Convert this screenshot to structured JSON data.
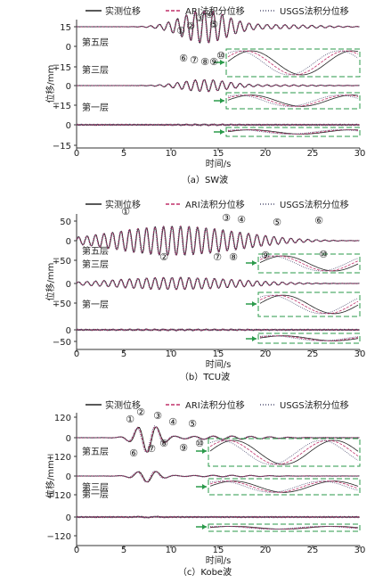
{
  "legend": [
    "实测位移",
    "ARI法积分位移",
    "USGS法积分位移"
  ],
  "series_colors": [
    "#222222",
    "#c0306a",
    "#555577"
  ],
  "accent_colors": {
    "dashed_box": "#2a9a4a",
    "arrow": "#2a9a4a"
  },
  "chart_data": [
    {
      "type": "line",
      "caption": "（a）SW波",
      "xlabel": "时间/s",
      "ylabel": "位移/mm",
      "xlim": [
        0,
        30
      ],
      "x_ticks": [
        "0",
        "5",
        "10",
        "15",
        "20",
        "25",
        "30"
      ],
      "y_tick_labels": [
        "15",
        "0",
        "∓15",
        "0",
        "∓15",
        "0",
        "−15"
      ],
      "layer_labels": [
        "第五层",
        "第三层",
        "第一层"
      ],
      "markers": [
        "①",
        "②",
        "③",
        "④",
        "⑤",
        "⑥",
        "⑦",
        "⑧",
        "⑨",
        "⑩"
      ],
      "series": [
        {
          "name": "实测位移"
        },
        {
          "name": "ARI法积分位移"
        },
        {
          "name": "USGS法积分位移"
        }
      ],
      "layer_amplitudes_mm": [
        13,
        8,
        2
      ]
    },
    {
      "type": "line",
      "caption": "（b）TCU波",
      "xlabel": "时间/s",
      "ylabel": "位移/mm",
      "xlim": [
        0,
        30
      ],
      "x_ticks": [
        "0",
        "5",
        "10",
        "15",
        "20",
        "25",
        "30"
      ],
      "y_tick_labels": [
        "50",
        "0",
        "∓50",
        "0",
        "∓50",
        "0",
        "−50"
      ],
      "layer_labels": [
        "第五层",
        "第三层",
        "第一层"
      ],
      "markers": [
        "①",
        "②",
        "③",
        "④",
        "⑤",
        "⑥",
        "⑦",
        "⑧",
        "⑨",
        "⑩"
      ],
      "series": [
        {
          "name": "实测位移"
        },
        {
          "name": "ARI法积分位移"
        },
        {
          "name": "USGS法积分位移"
        }
      ],
      "layer_amplitudes_mm": [
        38,
        30,
        8
      ]
    },
    {
      "type": "line",
      "caption": "（c）Kobe波",
      "xlabel": "时间/s",
      "ylabel": "位移/mm",
      "xlim": [
        0,
        30
      ],
      "x_ticks": [
        "0",
        "5",
        "10",
        "15",
        "20",
        "25",
        "30"
      ],
      "y_tick_labels": [
        "120",
        "0",
        "∓120",
        "0",
        "∓120",
        "0",
        "−120"
      ],
      "layer_labels": [
        "第五层",
        "第三层",
        "第一层"
      ],
      "markers": [
        "①",
        "②",
        "③",
        "④",
        "⑤",
        "⑥",
        "⑦",
        "⑧",
        "⑨",
        "⑩"
      ],
      "series": [
        {
          "name": "实测位移"
        },
        {
          "name": "ARI法积分位移"
        },
        {
          "name": "USGS法积分位移"
        }
      ],
      "layer_amplitudes_mm": [
        90,
        50,
        15
      ]
    }
  ]
}
